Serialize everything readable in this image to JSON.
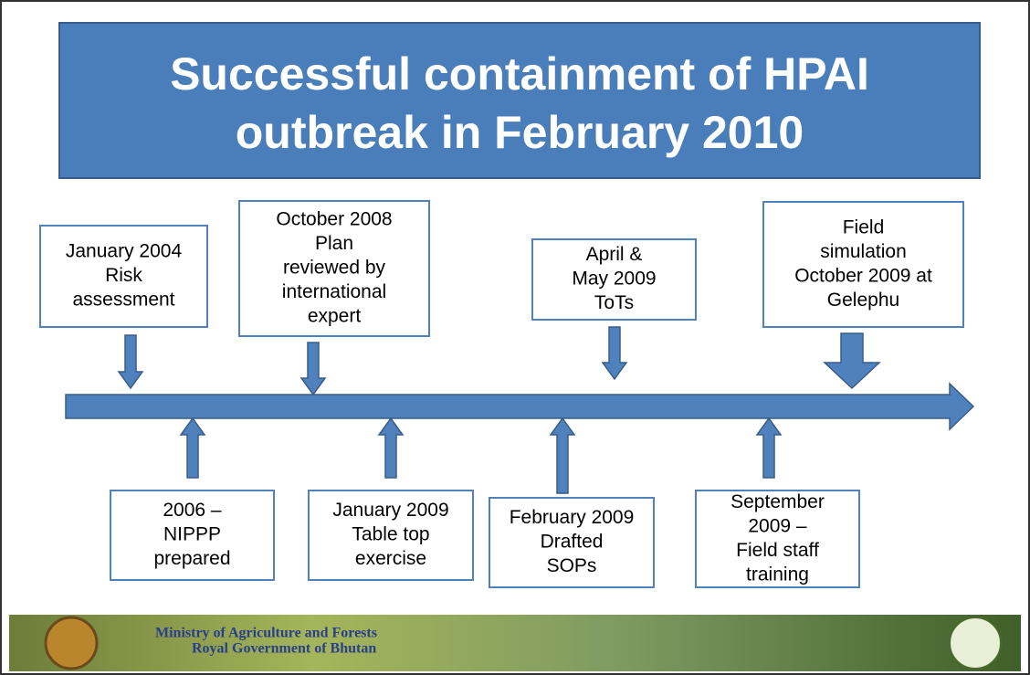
{
  "header": {
    "title_lines": [
      "Successful containment of HPAI",
      "outbreak in February 2010"
    ]
  },
  "timeline": {
    "top": [
      {
        "lines": [
          "January 2004",
          "Risk",
          "assessment"
        ]
      },
      {
        "lines": [
          "October 2008",
          "Plan",
          "reviewed by",
          "international",
          "expert"
        ]
      },
      {
        "lines": [
          "April &",
          "May 2009",
          "ToTs"
        ]
      },
      {
        "lines": [
          "Field",
          "simulation",
          "October 2009 at",
          "Gelephu"
        ]
      }
    ],
    "bottom": [
      {
        "lines": [
          "2006 –",
          "NIPPP",
          "prepared"
        ]
      },
      {
        "lines": [
          "January 2009",
          "Table top",
          "exercise"
        ]
      },
      {
        "lines": [
          "February 2009",
          "Drafted",
          "SOPs"
        ]
      },
      {
        "lines": [
          "September",
          "2009 –",
          "Field staff",
          "training"
        ]
      }
    ]
  },
  "footer": {
    "lines": [
      "Ministry of Agriculture and Forests",
      "Royal Government of Bhutan"
    ]
  }
}
